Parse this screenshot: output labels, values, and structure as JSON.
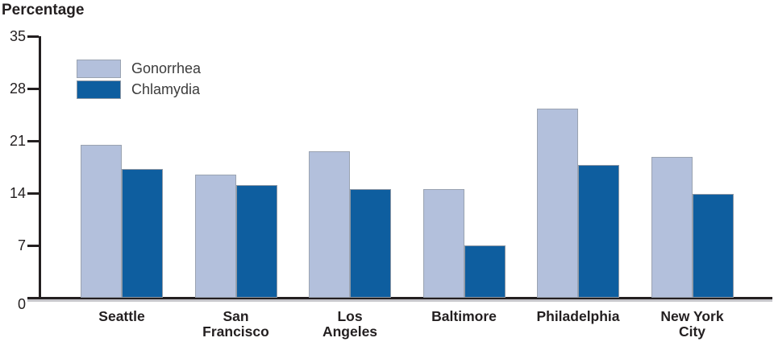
{
  "chart_data": {
    "type": "bar",
    "title": "Percentage",
    "ylabel": "Percentage",
    "xlabel": "",
    "grid": false,
    "legend_position": "top-left",
    "ylim": [
      0,
      35
    ],
    "yticks": [
      0,
      7,
      14,
      21,
      28,
      35
    ],
    "categories": [
      "Seattle",
      "San Francisco",
      "Los Angeles",
      "Baltimore",
      "Philadelphia",
      "New York City"
    ],
    "category_lines": [
      [
        "Seattle"
      ],
      [
        "San",
        "Francisco"
      ],
      [
        "Los",
        "Angeles"
      ],
      [
        "Baltimore"
      ],
      [
        "Philadelphia"
      ],
      [
        "New York",
        "City"
      ]
    ],
    "series": [
      {
        "name": "Gonorrhea",
        "color": "#b3c0dc",
        "border": "#9aa3b1",
        "values": [
          20.5,
          16.5,
          19.6,
          14.5,
          25.3,
          18.8
        ]
      },
      {
        "name": "Chlamydia",
        "color": "#0e5e9f",
        "border": "#8f99a6",
        "values": [
          17.2,
          15.1,
          14.5,
          7.0,
          17.8,
          13.9
        ]
      }
    ],
    "colors": {
      "axis": "#231f20",
      "axis_shadow": "#c7c7cb",
      "text": "#231f20",
      "legend_text": "#3c3c3c",
      "background": "#ffffff"
    }
  }
}
